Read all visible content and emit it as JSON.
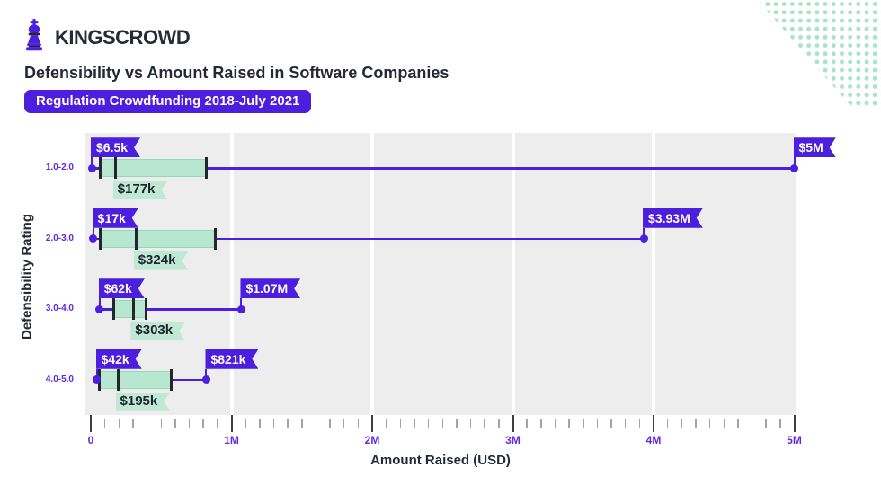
{
  "brand": {
    "name": "KINGSCROWD",
    "logo_icon": "chess-king-icon",
    "brand_color": "#4c1edd"
  },
  "header": {
    "title": "Defensibility vs Amount Raised in Software Companies",
    "badge": "Regulation Crowdfunding 2018-July 2021"
  },
  "decoration": {
    "dots_pattern": "mint dot grid in top-right corner with diagonal cut",
    "dots_color": "#a8e4c9"
  },
  "chart_data": {
    "type": "box",
    "orientation": "horizontal",
    "title": "Defensibility vs Amount Raised in Software Companies",
    "subtitle": "Regulation Crowdfunding 2018-July 2021",
    "xlabel": "Amount Raised (USD)",
    "ylabel": "Defensibility Rating",
    "xlim": [
      0,
      5000000
    ],
    "x_ticks": [
      {
        "value": 0,
        "label": "0"
      },
      {
        "value": 1000000,
        "label": "1M"
      },
      {
        "value": 2000000,
        "label": "2M"
      },
      {
        "value": 3000000,
        "label": "3M"
      },
      {
        "value": 4000000,
        "label": "4M"
      },
      {
        "value": 5000000,
        "label": "5M"
      }
    ],
    "x_minor_step": 100000,
    "grid": "white vertical gridlines at 1M,2M,3M,4M on gray panel",
    "legend_position": "none",
    "categories": [
      "1.0-2.0",
      "2.0-3.0",
      "3.0-4.0",
      "4.0-5.0"
    ],
    "series": [
      {
        "category": "1.0-2.0",
        "min": 6500,
        "q1": 64000,
        "median": 177000,
        "q3": 818000,
        "max": 5000000,
        "min_label": "$6.5k",
        "median_label": "$177k",
        "max_label": "$5M"
      },
      {
        "category": "2.0-3.0",
        "min": 17000,
        "q1": 64000,
        "median": 324000,
        "q3": 888000,
        "max": 3930000,
        "min_label": "$17k",
        "median_label": "$324k",
        "max_label": "$3.93M"
      },
      {
        "category": "3.0-4.0",
        "min": 62000,
        "q1": 160000,
        "median": 303000,
        "q3": 396000,
        "max": 1070000,
        "min_label": "$62k",
        "median_label": "$303k",
        "max_label": "$1.07M"
      },
      {
        "category": "4.0-5.0",
        "min": 42000,
        "q1": 58000,
        "median": 195000,
        "q3": 575000,
        "max": 821000,
        "min_label": "$42k",
        "median_label": "$195k",
        "max_label": "$821k"
      }
    ],
    "colors": {
      "primary_purple": "#4c1edd",
      "tick_label_purple": "#5f2ae2",
      "box_mint": "#b8e7d1",
      "box_mint_border": "#93d8ba",
      "ribbon_mint": "#bfe9d5",
      "ribbon_connector_mint": "#d6f0e3",
      "dark_line": "#23262d",
      "panel_gray": "#ededed",
      "gridline_white": "#ffffff",
      "text_dark": "#242936"
    }
  }
}
